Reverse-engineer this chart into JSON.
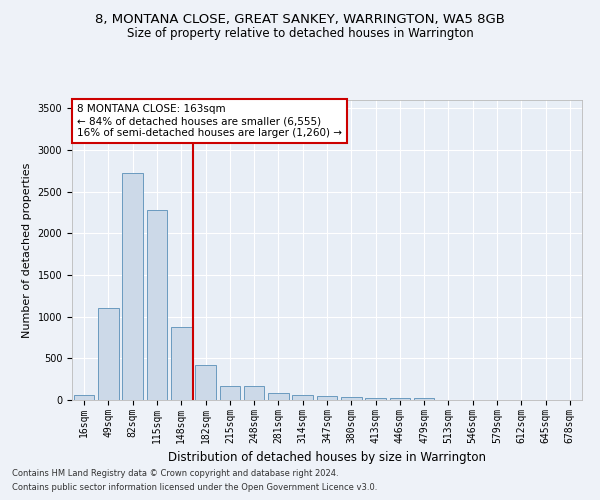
{
  "title": "8, MONTANA CLOSE, GREAT SANKEY, WARRINGTON, WA5 8GB",
  "subtitle": "Size of property relative to detached houses in Warrington",
  "xlabel": "Distribution of detached houses by size in Warrington",
  "ylabel": "Number of detached properties",
  "footnote1": "Contains HM Land Registry data © Crown copyright and database right 2024.",
  "footnote2": "Contains public sector information licensed under the Open Government Licence v3.0.",
  "annotation_line1": "8 MONTANA CLOSE: 163sqm",
  "annotation_line2": "← 84% of detached houses are smaller (6,555)",
  "annotation_line3": "16% of semi-detached houses are larger (1,260) →",
  "bar_color": "#ccd9e8",
  "bar_edge_color": "#6a9abf",
  "vline_color": "#cc0000",
  "vline_position": 4.5,
  "categories": [
    "16sqm",
    "49sqm",
    "82sqm",
    "115sqm",
    "148sqm",
    "182sqm",
    "215sqm",
    "248sqm",
    "281sqm",
    "314sqm",
    "347sqm",
    "380sqm",
    "413sqm",
    "446sqm",
    "479sqm",
    "513sqm",
    "546sqm",
    "579sqm",
    "612sqm",
    "645sqm",
    "678sqm"
  ],
  "values": [
    55,
    1110,
    2730,
    2280,
    880,
    420,
    170,
    165,
    90,
    55,
    50,
    35,
    30,
    30,
    25,
    5,
    0,
    0,
    0,
    0,
    0
  ],
  "ylim": [
    0,
    3600
  ],
  "yticks": [
    0,
    500,
    1000,
    1500,
    2000,
    2500,
    3000,
    3500
  ],
  "background_color": "#eef2f8",
  "plot_background": "#e8eef6",
  "grid_color": "#ffffff",
  "title_fontsize": 9.5,
  "subtitle_fontsize": 8.5,
  "ylabel_fontsize": 8,
  "xlabel_fontsize": 8.5,
  "tick_fontsize": 7,
  "annot_fontsize": 7.5,
  "footnote_fontsize": 6
}
